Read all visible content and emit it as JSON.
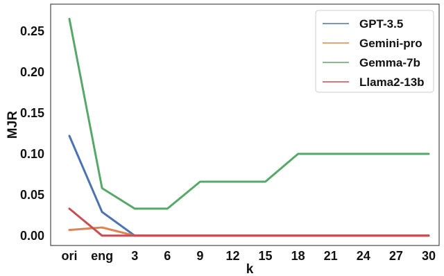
{
  "chart_data": {
    "type": "line",
    "xlabel": "k",
    "ylabel": "MJR",
    "categories": [
      "ori",
      "eng",
      "3",
      "6",
      "9",
      "12",
      "15",
      "18",
      "21",
      "24",
      "27",
      "30"
    ],
    "ylim": [
      -0.012,
      0.283
    ],
    "yticks": [
      "0.00",
      "0.05",
      "0.10",
      "0.15",
      "0.20",
      "0.25"
    ],
    "ytick_values": [
      0,
      0.05,
      0.1,
      0.15,
      0.2,
      0.25
    ],
    "grid": false,
    "legend_position": "top-right",
    "series": [
      {
        "name": "GPT-3.5",
        "color": "#4c72b0",
        "values": [
          0.122,
          0.029,
          0,
          0,
          0,
          0,
          0,
          0,
          0,
          0,
          0,
          0
        ]
      },
      {
        "name": "Gemini-pro",
        "color": "#dd8452",
        "values": [
          0.007,
          0.01,
          0,
          0,
          0,
          0,
          0,
          0,
          0,
          0,
          0,
          0
        ]
      },
      {
        "name": "Gemma-7b",
        "color": "#55a868",
        "values": [
          0.265,
          0.058,
          0.033,
          0.033,
          0.066,
          0.066,
          0.066,
          0.1,
          0.1,
          0.1,
          0.1,
          0.1
        ]
      },
      {
        "name": "Llama2-13b",
        "color": "#c44e52",
        "values": [
          0.033,
          0,
          0,
          0,
          0,
          0,
          0,
          0,
          0,
          0,
          0,
          0
        ]
      }
    ]
  }
}
